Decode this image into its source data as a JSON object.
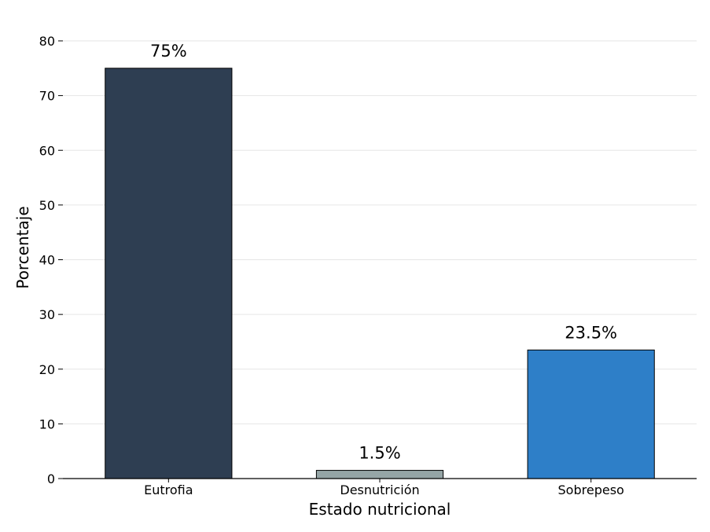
{
  "chart_data": {
    "type": "bar",
    "categories": [
      "Eutrofia",
      "Desnutrición",
      "Sobrepeso"
    ],
    "values": [
      75,
      1.5,
      23.5
    ],
    "data_labels": [
      "75%",
      "1.5%",
      "23.5%"
    ],
    "colors": [
      "#2e3e52",
      "#95a5a6",
      "#2e7fc8"
    ],
    "xlabel": "Estado nutricional",
    "ylabel": "Porcentaje",
    "ylim": [
      0,
      80
    ],
    "yticks": [
      0,
      10,
      20,
      30,
      40,
      50,
      60,
      70,
      80
    ],
    "grid": "horizontal",
    "grid_color": "#e6e6e6"
  }
}
